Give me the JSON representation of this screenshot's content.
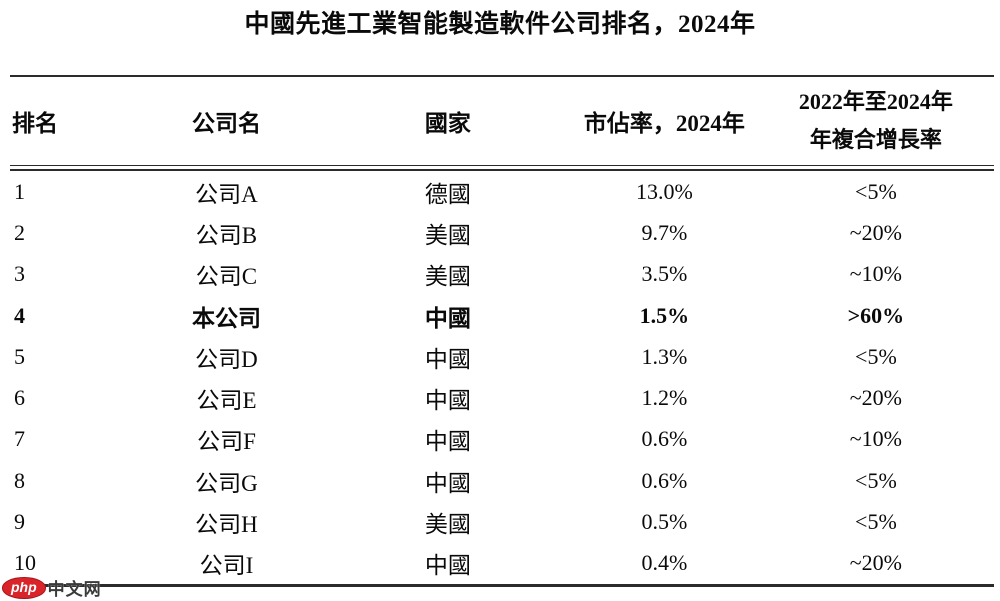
{
  "title": "中國先進工業智能製造軟件公司排名，2024年",
  "table": {
    "columns": {
      "rank": "排名",
      "company": "公司名",
      "country": "國家",
      "share": "市佔率，2024年",
      "cagr_line1": "2022年至2024年",
      "cagr_line2": "年複合增長率"
    },
    "rows": [
      {
        "rank": "1",
        "company": "公司A",
        "country": "德國",
        "share": "13.0%",
        "cagr": "<5%",
        "emphasis": false
      },
      {
        "rank": "2",
        "company": "公司B",
        "country": "美國",
        "share": "9.7%",
        "cagr": "~20%",
        "emphasis": false
      },
      {
        "rank": "3",
        "company": "公司C",
        "country": "美國",
        "share": "3.5%",
        "cagr": "~10%",
        "emphasis": false
      },
      {
        "rank": "4",
        "company": "本公司",
        "country": "中國",
        "share": "1.5%",
        "cagr": ">60%",
        "emphasis": true
      },
      {
        "rank": "5",
        "company": "公司D",
        "country": "中國",
        "share": "1.3%",
        "cagr": "<5%",
        "emphasis": false
      },
      {
        "rank": "6",
        "company": "公司E",
        "country": "中國",
        "share": "1.2%",
        "cagr": "~20%",
        "emphasis": false
      },
      {
        "rank": "7",
        "company": "公司F",
        "country": "中國",
        "share": "0.6%",
        "cagr": "~10%",
        "emphasis": false
      },
      {
        "rank": "8",
        "company": "公司G",
        "country": "中國",
        "share": "0.6%",
        "cagr": "<5%",
        "emphasis": false
      },
      {
        "rank": "9",
        "company": "公司H",
        "country": "美國",
        "share": "0.5%",
        "cagr": "<5%",
        "emphasis": false
      },
      {
        "rank": "10",
        "company": "公司I",
        "country": "中國",
        "share": "0.4%",
        "cagr": "~20%",
        "emphasis": false
      }
    ]
  },
  "watermark": {
    "badge_text": "php",
    "site_text": "中文网",
    "badge_color": "#d9252a"
  }
}
